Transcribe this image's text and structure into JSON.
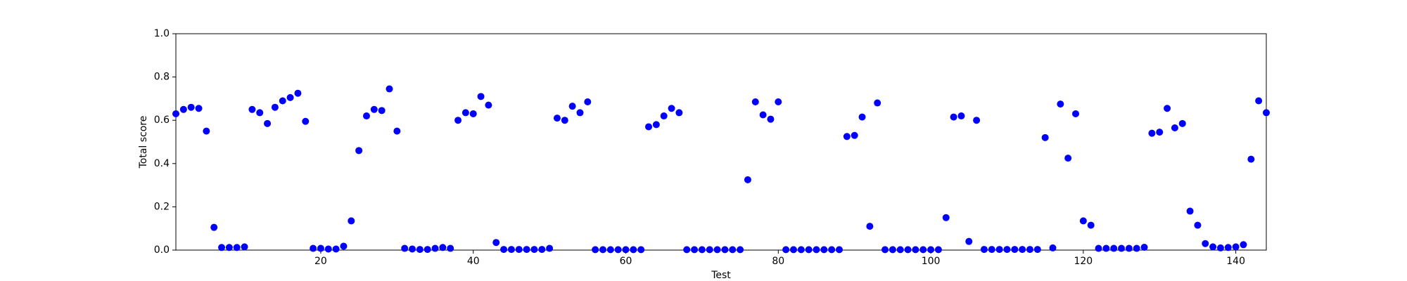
{
  "chart_data": {
    "type": "scatter",
    "xlabel": "Test",
    "ylabel": "Total score",
    "color": "#0000ff",
    "x": [
      1,
      2,
      3,
      4,
      5,
      6,
      7,
      8,
      9,
      10,
      11,
      12,
      13,
      14,
      15,
      16,
      17,
      18,
      19,
      20,
      21,
      22,
      23,
      24,
      25,
      26,
      27,
      28,
      29,
      30,
      31,
      32,
      33,
      34,
      35,
      36,
      37,
      38,
      39,
      40,
      41,
      42,
      43,
      44,
      45,
      46,
      47,
      48,
      49,
      50,
      51,
      52,
      53,
      54,
      55,
      56,
      57,
      58,
      59,
      60,
      61,
      62,
      63,
      64,
      65,
      66,
      67,
      68,
      69,
      70,
      71,
      72,
      73,
      74,
      75,
      76,
      77,
      78,
      79,
      80,
      81,
      82,
      83,
      84,
      85,
      86,
      87,
      88,
      89,
      90,
      91,
      92,
      93,
      94,
      95,
      96,
      97,
      98,
      99,
      100,
      101,
      102,
      103,
      104,
      105,
      106,
      107,
      108,
      109,
      110,
      111,
      112,
      113,
      114,
      115,
      116,
      117,
      118,
      119,
      120,
      121,
      122,
      123,
      124,
      125,
      126,
      127,
      128,
      129,
      130,
      131,
      132,
      133,
      134,
      135,
      136,
      137,
      138,
      139,
      140,
      141,
      142,
      143,
      144
    ],
    "values": [
      0.63,
      0.65,
      0.66,
      0.655,
      0.55,
      0.105,
      0.012,
      0.012,
      0.012,
      0.015,
      0.65,
      0.635,
      0.585,
      0.66,
      0.69,
      0.705,
      0.725,
      0.595,
      0.008,
      0.008,
      0.005,
      0.005,
      0.018,
      0.135,
      0.46,
      0.62,
      0.65,
      0.645,
      0.745,
      0.55,
      0.008,
      0.005,
      0.003,
      0.003,
      0.008,
      0.012,
      0.008,
      0.6,
      0.635,
      0.63,
      0.71,
      0.67,
      0.035,
      0.003,
      0.003,
      0.003,
      0.003,
      0.003,
      0.003,
      0.008,
      0.61,
      0.6,
      0.665,
      0.635,
      0.685,
      0.002,
      0.002,
      0.002,
      0.002,
      0.002,
      0.002,
      0.002,
      0.57,
      0.58,
      0.62,
      0.655,
      0.635,
      0.002,
      0.002,
      0.002,
      0.002,
      0.002,
      0.002,
      0.002,
      0.002,
      0.325,
      0.685,
      0.625,
      0.605,
      0.685,
      0.002,
      0.002,
      0.002,
      0.002,
      0.002,
      0.002,
      0.002,
      0.002,
      0.525,
      0.53,
      0.615,
      0.11,
      0.68,
      0.002,
      0.002,
      0.002,
      0.002,
      0.002,
      0.002,
      0.002,
      0.002,
      0.15,
      0.615,
      0.62,
      0.04,
      0.6,
      0.003,
      0.003,
      0.003,
      0.003,
      0.003,
      0.003,
      0.003,
      0.003,
      0.52,
      0.01,
      0.675,
      0.425,
      0.63,
      0.135,
      0.115,
      0.008,
      0.008,
      0.008,
      0.008,
      0.008,
      0.008,
      0.013,
      0.54,
      0.545,
      0.655,
      0.565,
      0.585,
      0.18,
      0.115,
      0.03,
      0.015,
      0.01,
      0.012,
      0.015,
      0.025,
      0.42,
      0.69,
      0.635
    ],
    "xlim": [
      1,
      144
    ],
    "xticks": [
      20,
      40,
      60,
      80,
      100,
      120,
      140
    ],
    "ylim": [
      0,
      1
    ],
    "yticks": [
      {
        "value": 0,
        "label": "0.0"
      },
      0.2,
      0.4,
      0.6,
      0.8,
      {
        "value": 1,
        "label": "1.0"
      }
    ]
  }
}
